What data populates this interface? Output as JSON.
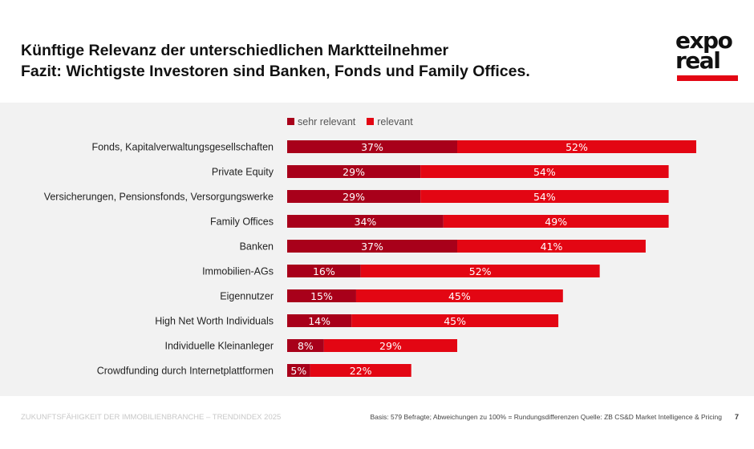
{
  "title_line1": "Künftige Relevanz der unterschiedlichen Marktteilnehmer",
  "title_line2": "Fazit: Wichtigste Investoren sind Banken, Fonds und Family Offices.",
  "logo": {
    "line1": "expo",
    "line2": "real"
  },
  "footer": {
    "left": "ZUKUNFTSFÄHIGKEIT DER IMMOBILIENBRANCHE – TRENDINDEX 2025",
    "source": "Basis: 579 Befragte; Abweichungen zu 100% = Rundungsdifferenzen Quelle: ZB CS&D Market Intelligence & Pricing",
    "page": "7"
  },
  "chart_data": {
    "type": "bar",
    "orientation": "horizontal",
    "stacked": true,
    "legend_position": "top",
    "categories": [
      "Fonds, Kapitalverwaltungsgesellschaften",
      "Private Equity",
      "Versicherungen, Pensionsfonds, Versorgungswerke",
      "Family Offices",
      "Banken",
      "Immobilien-AGs",
      "Eigennutzer",
      "High Net Worth Individuals",
      "Individuelle Kleinanleger",
      "Crowdfunding durch Internetplattformen"
    ],
    "series": [
      {
        "name": "sehr relevant",
        "color": "#a8001a",
        "values": [
          37,
          29,
          29,
          34,
          37,
          16,
          15,
          14,
          8,
          5
        ]
      },
      {
        "name": "relevant",
        "color": "#e30613",
        "values": [
          52,
          54,
          54,
          49,
          41,
          52,
          45,
          45,
          29,
          22
        ]
      }
    ]
  }
}
